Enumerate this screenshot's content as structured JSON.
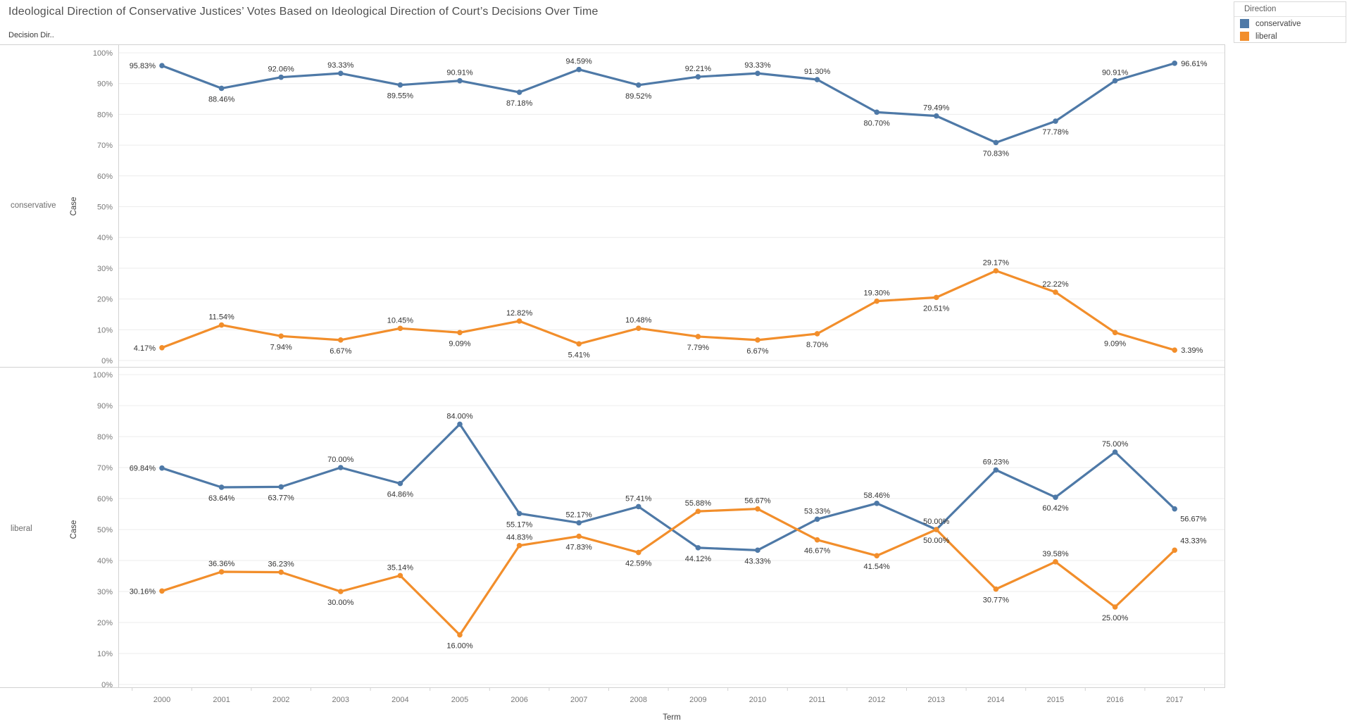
{
  "title": "Ideological Direction of Conservative Justices’ Votes Based on Ideological Direction of Court’s Decisions Over Time",
  "sheet_header": "Decision Dir..",
  "legend": {
    "title": "Direction",
    "items": [
      {
        "label": "conservative",
        "color": "#4e79a7"
      },
      {
        "label": "liberal",
        "color": "#f28e2b"
      }
    ]
  },
  "axis": {
    "x_title": "Term",
    "y_title": "Case",
    "y_tick_labels": [
      "0%",
      "10%",
      "20%",
      "30%",
      "40%",
      "50%",
      "60%",
      "70%",
      "80%",
      "90%",
      "100%"
    ],
    "y_range": [
      0,
      100
    ]
  },
  "chart_data": {
    "type": "line",
    "x": [
      2000,
      2001,
      2002,
      2003,
      2004,
      2005,
      2006,
      2007,
      2008,
      2009,
      2010,
      2011,
      2012,
      2013,
      2014,
      2015,
      2016,
      2017
    ],
    "panels": [
      {
        "row_label": "conservative",
        "ylim": [
          0,
          100
        ],
        "series": [
          {
            "name": "conservative",
            "color": "#4e79a7",
            "values": [
              95.83,
              88.46,
              92.06,
              93.33,
              89.55,
              90.91,
              87.18,
              94.59,
              89.52,
              92.21,
              93.33,
              91.3,
              80.7,
              79.49,
              70.83,
              77.78,
              90.91,
              96.61
            ],
            "label_pos": [
              "left",
              "below",
              "above",
              "above",
              "below",
              "above",
              "below",
              "above",
              "below",
              "above",
              "above",
              "above",
              "below",
              "above",
              "below",
              "below",
              "above",
              "right"
            ]
          },
          {
            "name": "liberal",
            "color": "#f28e2b",
            "values": [
              4.17,
              11.54,
              7.94,
              6.67,
              10.45,
              9.09,
              12.82,
              5.41,
              10.48,
              7.79,
              6.67,
              8.7,
              19.3,
              20.51,
              29.17,
              22.22,
              9.09,
              3.39
            ],
            "label_pos": [
              "left",
              "above",
              "below",
              "below",
              "above",
              "below",
              "above",
              "below",
              "above",
              "below",
              "below",
              "below",
              "above",
              "below",
              "above",
              "above",
              "below",
              "right"
            ]
          }
        ]
      },
      {
        "row_label": "liberal",
        "ylim": [
          0,
          100
        ],
        "series": [
          {
            "name": "conservative",
            "color": "#4e79a7",
            "values": [
              69.84,
              63.64,
              63.77,
              70.0,
              64.86,
              84.0,
              55.17,
              52.17,
              57.41,
              44.12,
              43.33,
              53.33,
              58.46,
              50.0,
              69.23,
              60.42,
              75.0,
              56.67
            ],
            "label_pos": [
              "left",
              "below",
              "below",
              "above",
              "below",
              "above",
              "below",
              "above",
              "above",
              "below",
              "below",
              "above",
              "above",
              "above",
              "above",
              "below",
              "above",
              "right-below"
            ]
          },
          {
            "name": "liberal",
            "color": "#f28e2b",
            "values": [
              30.16,
              36.36,
              36.23,
              30.0,
              35.14,
              16.0,
              44.83,
              47.83,
              42.59,
              55.88,
              56.67,
              46.67,
              41.54,
              50.0,
              30.77,
              39.58,
              25.0,
              43.33
            ],
            "label_pos": [
              "left",
              "above",
              "above",
              "below",
              "above",
              "below",
              "above",
              "below",
              "below",
              "above",
              "above",
              "below",
              "below",
              "below",
              "below",
              "above",
              "below",
              "right-above"
            ]
          }
        ]
      }
    ]
  }
}
